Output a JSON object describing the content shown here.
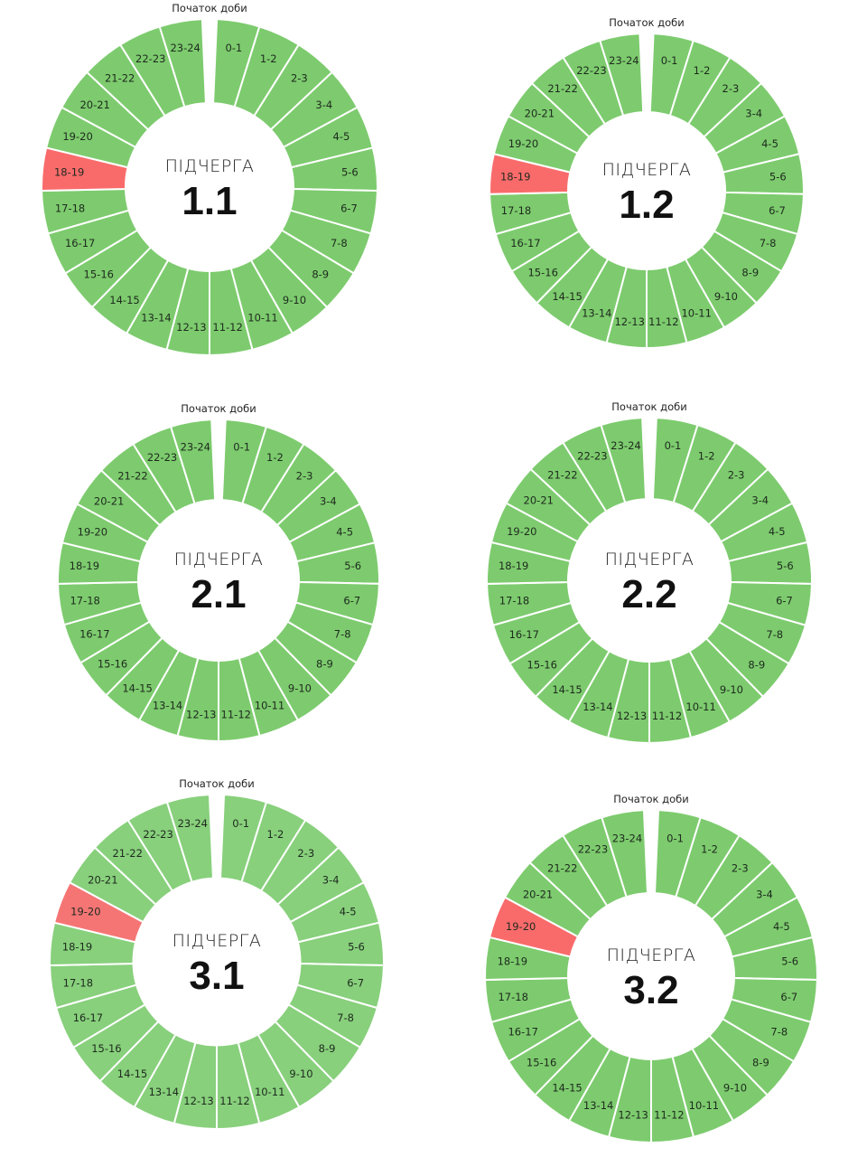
{
  "chart_data": [
    {
      "type": "pie",
      "variant": "donut",
      "top_label": "Початок доби",
      "center_word": "ПІДЧЕРГА",
      "title": "1.1",
      "categories": [
        "0-1",
        "1-2",
        "2-3",
        "3-4",
        "4-5",
        "5-6",
        "6-7",
        "7-8",
        "8-9",
        "9-10",
        "10-11",
        "11-12",
        "12-13",
        "13-14",
        "14-15",
        "15-16",
        "16-17",
        "17-18",
        "18-19",
        "19-20",
        "20-21",
        "21-22",
        "22-23",
        "23-24"
      ],
      "outage_hours": [
        "18-19"
      ]
    },
    {
      "type": "pie",
      "variant": "donut",
      "top_label": "Початок доби",
      "center_word": "ПІДЧЕРГА",
      "title": "1.2",
      "categories": [
        "0-1",
        "1-2",
        "2-3",
        "3-4",
        "4-5",
        "5-6",
        "6-7",
        "7-8",
        "8-9",
        "9-10",
        "10-11",
        "11-12",
        "12-13",
        "13-14",
        "14-15",
        "15-16",
        "16-17",
        "17-18",
        "18-19",
        "19-20",
        "20-21",
        "21-22",
        "22-23",
        "23-24"
      ],
      "outage_hours": [
        "18-19"
      ]
    },
    {
      "type": "pie",
      "variant": "donut",
      "top_label": "Початок доби",
      "center_word": "ПІДЧЕРГА",
      "title": "2.1",
      "categories": [
        "0-1",
        "1-2",
        "2-3",
        "3-4",
        "4-5",
        "5-6",
        "6-7",
        "7-8",
        "8-9",
        "9-10",
        "10-11",
        "11-12",
        "12-13",
        "13-14",
        "14-15",
        "15-16",
        "16-17",
        "17-18",
        "18-19",
        "19-20",
        "20-21",
        "21-22",
        "22-23",
        "23-24"
      ],
      "outage_hours": []
    },
    {
      "type": "pie",
      "variant": "donut",
      "top_label": "Початок доби",
      "center_word": "ПІДЧЕРГА",
      "title": "2.2",
      "categories": [
        "0-1",
        "1-2",
        "2-3",
        "3-4",
        "4-5",
        "5-6",
        "6-7",
        "7-8",
        "8-9",
        "9-10",
        "10-11",
        "11-12",
        "12-13",
        "13-14",
        "14-15",
        "15-16",
        "16-17",
        "17-18",
        "18-19",
        "19-20",
        "20-21",
        "21-22",
        "22-23",
        "23-24"
      ],
      "outage_hours": []
    },
    {
      "type": "pie",
      "variant": "donut",
      "top_label": "Початок доби",
      "center_word": "ПІДЧЕРГА",
      "title": "3.1",
      "categories": [
        "0-1",
        "1-2",
        "2-3",
        "3-4",
        "4-5",
        "5-6",
        "6-7",
        "7-8",
        "8-9",
        "9-10",
        "10-11",
        "11-12",
        "12-13",
        "13-14",
        "14-15",
        "15-16",
        "16-17",
        "17-18",
        "18-19",
        "19-20",
        "20-21",
        "21-22",
        "22-23",
        "23-24"
      ],
      "outage_hours": [
        "19-20"
      ],
      "colors": {
        "on": "#88d07c",
        "off": "#f57575"
      }
    },
    {
      "type": "pie",
      "variant": "donut",
      "top_label": "Початок доби",
      "center_word": "ПІДЧЕРГА",
      "title": "3.2",
      "categories": [
        "0-1",
        "1-2",
        "2-3",
        "3-4",
        "4-5",
        "5-6",
        "6-7",
        "7-8",
        "8-9",
        "9-10",
        "10-11",
        "11-12",
        "12-13",
        "13-14",
        "14-15",
        "15-16",
        "16-17",
        "17-18",
        "18-19",
        "19-20",
        "20-21",
        "21-22",
        "22-23",
        "23-24"
      ],
      "outage_hours": [
        "19-20"
      ]
    }
  ],
  "colors": {
    "on": "#7dcb6e",
    "off": "#f96b6b",
    "separator": "#ffffff"
  }
}
